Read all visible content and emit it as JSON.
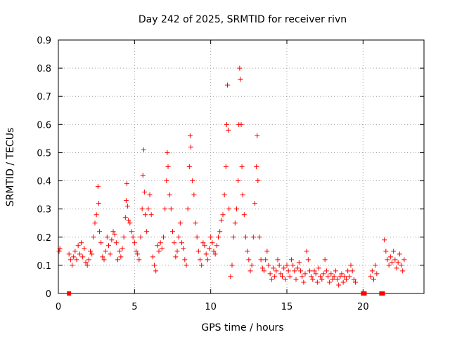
{
  "chart_data": {
    "type": "scatter",
    "title": "Day 242 of 2025, SRMTID for receiver rivn",
    "xlabel": "GPS time / hours",
    "ylabel": "SRMTID / TECUs",
    "xlim": [
      0,
      24
    ],
    "ylim": [
      0,
      0.9
    ],
    "xticks": [
      0,
      5,
      10,
      15,
      20
    ],
    "xtick_labels": [
      "0",
      "5",
      "10",
      "15",
      "20"
    ],
    "yticks": [
      0,
      0.1,
      0.2,
      0.3,
      0.4,
      0.5,
      0.6,
      0.7,
      0.8,
      0.9
    ],
    "ytick_labels": [
      "0",
      "0.1",
      "0.2",
      "0.3",
      "0.4",
      "0.5",
      "0.6",
      "0.7",
      "0.8",
      "0.9"
    ],
    "grid": true,
    "marker": "+",
    "series": [
      {
        "name": "SRMTID",
        "color": "#ff0000",
        "points": [
          [
            0.05,
            0.15
          ],
          [
            0.1,
            0.16
          ],
          [
            0.7,
            0.14
          ],
          [
            0.8,
            0.12
          ],
          [
            0.9,
            0.1
          ],
          [
            1.0,
            0.13
          ],
          [
            1.1,
            0.15
          ],
          [
            1.2,
            0.12
          ],
          [
            1.3,
            0.17
          ],
          [
            1.4,
            0.14
          ],
          [
            1.5,
            0.18
          ],
          [
            1.6,
            0.13
          ],
          [
            1.7,
            0.16
          ],
          [
            1.8,
            0.11
          ],
          [
            1.9,
            0.1
          ],
          [
            2.0,
            0.12
          ],
          [
            2.1,
            0.15
          ],
          [
            2.2,
            0.14
          ],
          [
            2.3,
            0.2
          ],
          [
            2.4,
            0.25
          ],
          [
            2.5,
            0.28
          ],
          [
            2.6,
            0.38
          ],
          [
            2.65,
            0.32
          ],
          [
            2.7,
            0.22
          ],
          [
            2.8,
            0.18
          ],
          [
            2.9,
            0.13
          ],
          [
            3.0,
            0.12
          ],
          [
            3.1,
            0.15
          ],
          [
            3.2,
            0.2
          ],
          [
            3.3,
            0.17
          ],
          [
            3.4,
            0.14
          ],
          [
            3.5,
            0.19
          ],
          [
            3.6,
            0.22
          ],
          [
            3.7,
            0.21
          ],
          [
            3.8,
            0.18
          ],
          [
            3.9,
            0.12
          ],
          [
            4.0,
            0.15
          ],
          [
            4.1,
            0.13
          ],
          [
            4.2,
            0.16
          ],
          [
            4.3,
            0.2
          ],
          [
            4.4,
            0.27
          ],
          [
            4.45,
            0.33
          ],
          [
            4.5,
            0.39
          ],
          [
            4.55,
            0.31
          ],
          [
            4.6,
            0.26
          ],
          [
            4.7,
            0.25
          ],
          [
            4.8,
            0.22
          ],
          [
            4.9,
            0.2
          ],
          [
            5.0,
            0.18
          ],
          [
            5.1,
            0.15
          ],
          [
            5.2,
            0.14
          ],
          [
            5.3,
            0.12
          ],
          [
            5.4,
            0.2
          ],
          [
            5.5,
            0.3
          ],
          [
            5.55,
            0.42
          ],
          [
            5.6,
            0.51
          ],
          [
            5.65,
            0.36
          ],
          [
            5.7,
            0.28
          ],
          [
            5.8,
            0.22
          ],
          [
            5.9,
            0.3
          ],
          [
            6.0,
            0.35
          ],
          [
            6.1,
            0.28
          ],
          [
            6.2,
            0.13
          ],
          [
            6.3,
            0.1
          ],
          [
            6.4,
            0.08
          ],
          [
            6.5,
            0.17
          ],
          [
            6.6,
            0.15
          ],
          [
            6.7,
            0.18
          ],
          [
            6.8,
            0.16
          ],
          [
            6.9,
            0.2
          ],
          [
            7.0,
            0.3
          ],
          [
            7.1,
            0.4
          ],
          [
            7.15,
            0.5
          ],
          [
            7.2,
            0.45
          ],
          [
            7.3,
            0.35
          ],
          [
            7.4,
            0.3
          ],
          [
            7.5,
            0.22
          ],
          [
            7.6,
            0.18
          ],
          [
            7.7,
            0.13
          ],
          [
            7.8,
            0.15
          ],
          [
            7.9,
            0.2
          ],
          [
            8.0,
            0.25
          ],
          [
            8.1,
            0.18
          ],
          [
            8.2,
            0.16
          ],
          [
            8.3,
            0.12
          ],
          [
            8.4,
            0.1
          ],
          [
            8.5,
            0.3
          ],
          [
            8.6,
            0.45
          ],
          [
            8.65,
            0.56
          ],
          [
            8.7,
            0.52
          ],
          [
            8.8,
            0.4
          ],
          [
            8.9,
            0.35
          ],
          [
            9.0,
            0.25
          ],
          [
            9.1,
            0.2
          ],
          [
            9.2,
            0.15
          ],
          [
            9.3,
            0.12
          ],
          [
            9.4,
            0.1
          ],
          [
            9.5,
            0.18
          ],
          [
            9.6,
            0.17
          ],
          [
            9.7,
            0.14
          ],
          [
            9.8,
            0.12
          ],
          [
            9.9,
            0.16
          ],
          [
            10.0,
            0.2
          ],
          [
            10.1,
            0.18
          ],
          [
            10.2,
            0.15
          ],
          [
            10.3,
            0.14
          ],
          [
            10.4,
            0.17
          ],
          [
            10.5,
            0.2
          ],
          [
            10.6,
            0.22
          ],
          [
            10.7,
            0.26
          ],
          [
            10.8,
            0.28
          ],
          [
            10.9,
            0.35
          ],
          [
            11.0,
            0.45
          ],
          [
            11.05,
            0.6
          ],
          [
            11.1,
            0.74
          ],
          [
            11.15,
            0.58
          ],
          [
            11.2,
            0.3
          ],
          [
            11.3,
            0.06
          ],
          [
            11.4,
            0.1
          ],
          [
            11.5,
            0.2
          ],
          [
            11.6,
            0.25
          ],
          [
            11.7,
            0.3
          ],
          [
            11.8,
            0.4
          ],
          [
            11.85,
            0.6
          ],
          [
            11.9,
            0.8
          ],
          [
            11.95,
            0.76
          ],
          [
            12.0,
            0.6
          ],
          [
            12.05,
            0.45
          ],
          [
            12.1,
            0.35
          ],
          [
            12.2,
            0.28
          ],
          [
            12.3,
            0.2
          ],
          [
            12.4,
            0.15
          ],
          [
            12.5,
            0.12
          ],
          [
            12.6,
            0.08
          ],
          [
            12.7,
            0.1
          ],
          [
            12.8,
            0.2
          ],
          [
            12.9,
            0.32
          ],
          [
            13.0,
            0.45
          ],
          [
            13.05,
            0.56
          ],
          [
            13.1,
            0.4
          ],
          [
            13.2,
            0.2
          ],
          [
            13.3,
            0.12
          ],
          [
            13.4,
            0.09
          ],
          [
            13.5,
            0.08
          ],
          [
            13.6,
            0.12
          ],
          [
            13.7,
            0.15
          ],
          [
            13.8,
            0.1
          ],
          [
            13.9,
            0.07
          ],
          [
            14.0,
            0.05
          ],
          [
            14.1,
            0.09
          ],
          [
            14.2,
            0.06
          ],
          [
            14.3,
            0.08
          ],
          [
            14.4,
            0.12
          ],
          [
            14.5,
            0.1
          ],
          [
            14.6,
            0.07
          ],
          [
            14.7,
            0.06
          ],
          [
            14.8,
            0.09
          ],
          [
            14.9,
            0.05
          ],
          [
            15.0,
            0.1
          ],
          [
            15.1,
            0.08
          ],
          [
            15.2,
            0.06
          ],
          [
            15.3,
            0.12
          ],
          [
            15.4,
            0.1
          ],
          [
            15.5,
            0.08
          ],
          [
            15.6,
            0.05
          ],
          [
            15.7,
            0.09
          ],
          [
            15.8,
            0.11
          ],
          [
            15.9,
            0.08
          ],
          [
            16.0,
            0.06
          ],
          [
            16.1,
            0.04
          ],
          [
            16.2,
            0.07
          ],
          [
            16.3,
            0.15
          ],
          [
            16.4,
            0.12
          ],
          [
            16.5,
            0.08
          ],
          [
            16.6,
            0.06
          ],
          [
            16.7,
            0.05
          ],
          [
            16.8,
            0.08
          ],
          [
            16.9,
            0.07
          ],
          [
            17.0,
            0.04
          ],
          [
            17.1,
            0.09
          ],
          [
            17.2,
            0.06
          ],
          [
            17.3,
            0.05
          ],
          [
            17.4,
            0.07
          ],
          [
            17.5,
            0.12
          ],
          [
            17.6,
            0.08
          ],
          [
            17.7,
            0.06
          ],
          [
            17.8,
            0.04
          ],
          [
            17.9,
            0.07
          ],
          [
            18.0,
            0.05
          ],
          [
            18.1,
            0.06
          ],
          [
            18.2,
            0.08
          ],
          [
            18.3,
            0.05
          ],
          [
            18.4,
            0.03
          ],
          [
            18.5,
            0.06
          ],
          [
            18.6,
            0.07
          ],
          [
            18.7,
            0.04
          ],
          [
            18.8,
            0.06
          ],
          [
            18.9,
            0.05
          ],
          [
            19.0,
            0.08
          ],
          [
            19.1,
            0.06
          ],
          [
            19.2,
            0.1
          ],
          [
            19.3,
            0.08
          ],
          [
            19.4,
            0.05
          ],
          [
            19.5,
            0.04
          ],
          [
            20.5,
            0.06
          ],
          [
            20.6,
            0.08
          ],
          [
            20.7,
            0.05
          ],
          [
            20.8,
            0.1
          ],
          [
            20.9,
            0.07
          ],
          [
            21.4,
            0.19
          ],
          [
            21.5,
            0.15
          ],
          [
            21.6,
            0.12
          ],
          [
            21.7,
            0.1
          ],
          [
            21.8,
            0.13
          ],
          [
            21.9,
            0.11
          ],
          [
            22.0,
            0.15
          ],
          [
            22.1,
            0.12
          ],
          [
            22.2,
            0.09
          ],
          [
            22.3,
            0.11
          ],
          [
            22.4,
            0.14
          ],
          [
            22.5,
            0.1
          ],
          [
            22.6,
            0.08
          ],
          [
            22.7,
            0.12
          ]
        ]
      }
    ],
    "zero_markers": [
      [
        0.7,
        0
      ],
      [
        20.0,
        0
      ],
      [
        20.1,
        0
      ],
      [
        21.2,
        0
      ],
      [
        21.3,
        0
      ]
    ]
  }
}
